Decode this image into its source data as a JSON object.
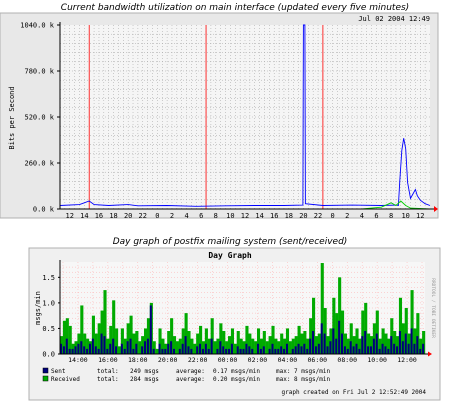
{
  "chart_data": [
    {
      "type": "line",
      "title": "Current bandwidth utilization on main interface (updated every five minutes)",
      "timestamp": "Jul 02 2004 12:49",
      "ylabel": "Bits per Second",
      "ylim": [
        0,
        1040000
      ],
      "yticks": [
        {
          "value": 0,
          "label": "0.0 k"
        },
        {
          "value": 260000,
          "label": "260.0 k"
        },
        {
          "value": 520000,
          "label": "520.0 k"
        },
        {
          "value": 780000,
          "label": "780.0 k"
        },
        {
          "value": 1040000,
          "label": "1040.0 k"
        }
      ],
      "xlabels": [
        "12",
        "14",
        "16",
        "18",
        "20",
        "22",
        "0",
        "2",
        "4",
        "6",
        "8",
        "10",
        "12",
        "14",
        "16",
        "18",
        "20",
        "22",
        "0",
        "2",
        "4",
        "6",
        "8",
        "10",
        "12"
      ],
      "day_boundaries_hours": [
        6,
        30,
        54
      ],
      "grid": true,
      "colors": {
        "background": "#f5f5f5",
        "grid": "#a0a0a0",
        "boundary": "#ff0000",
        "inbound": "#0000ff",
        "outbound": "#00cc00",
        "frame": "#000000"
      },
      "series": [
        {
          "color": "#0000ff",
          "points": [
            [
              0,
              20000
            ],
            [
              4,
              25000
            ],
            [
              5,
              35000
            ],
            [
              6,
              45000
            ],
            [
              7,
              25000
            ],
            [
              10,
              20000
            ],
            [
              14,
              25000
            ],
            [
              16,
              18000
            ],
            [
              22,
              20000
            ],
            [
              28,
              15000
            ],
            [
              34,
              18000
            ],
            [
              40,
              20000
            ],
            [
              46,
              20000
            ],
            [
              49.9,
              22000
            ],
            [
              50,
              1040000
            ],
            [
              50.3,
              1040000
            ],
            [
              50.4,
              30000
            ],
            [
              54,
              20000
            ],
            [
              60,
              22000
            ],
            [
              66,
              20000
            ],
            [
              69,
              22000
            ],
            [
              69.5,
              20000
            ],
            [
              69.8,
              160000
            ],
            [
              70.2,
              330000
            ],
            [
              70.6,
              400000
            ],
            [
              71,
              340000
            ],
            [
              71.4,
              150000
            ],
            [
              72,
              60000
            ],
            [
              73,
              110000
            ],
            [
              73.4,
              75000
            ],
            [
              74,
              50000
            ],
            [
              75,
              30000
            ],
            [
              76,
              20000
            ]
          ]
        },
        {
          "color": "#00cc00",
          "points": [
            [
              0,
              0
            ],
            [
              60,
              0
            ],
            [
              62,
              0
            ],
            [
              64,
              5000
            ],
            [
              66,
              10000
            ],
            [
              68,
              35000
            ],
            [
              69,
              20000
            ],
            [
              70,
              45000
            ],
            [
              71,
              20000
            ],
            [
              72,
              5000
            ],
            [
              76,
              0
            ]
          ]
        }
      ]
    },
    {
      "type": "bar",
      "title": "Day graph of postfix mailing system (sent/received)",
      "chart_title": "Day Graph",
      "ylabel": "msgs/min",
      "side_label": "RRDTOOL / TOBI OETIKER",
      "ylim": [
        0,
        1.8
      ],
      "yticks": [
        "0.0",
        "0.5",
        "1.0",
        "1.5"
      ],
      "xlabels": [
        "14:00",
        "16:00",
        "18:00",
        "20:00",
        "22:00",
        "00:00",
        "02:00",
        "04:00",
        "06:00",
        "08:00",
        "10:00",
        "12:00"
      ],
      "grid": true,
      "colors": {
        "background": "#f7f7f7",
        "grid": "#ff9a9a",
        "received": "#00aa00",
        "sent": "#00007a"
      },
      "received_values": [
        0.35,
        0.65,
        0.7,
        0.55,
        0.2,
        0.25,
        0.4,
        0.95,
        0.4,
        0.3,
        0.25,
        0.75,
        0.4,
        0.6,
        0.85,
        1.25,
        0.3,
        0.55,
        1.05,
        0.5,
        0.15,
        0.5,
        0.3,
        0.6,
        0.75,
        0.4,
        0.45,
        0.25,
        0.35,
        0.5,
        0.7,
        1.0,
        0.25,
        0.1,
        0.5,
        0.3,
        0.2,
        0.45,
        0.7,
        0.35,
        0.25,
        0.3,
        0.5,
        0.8,
        0.45,
        0.3,
        0.2,
        0.4,
        0.55,
        0.25,
        0.5,
        0.3,
        0.7,
        0.25,
        0.3,
        0.6,
        0.45,
        0.25,
        0.35,
        0.5,
        0.2,
        0.45,
        0.3,
        0.25,
        0.55,
        0.4,
        0.3,
        0.25,
        0.5,
        0.3,
        0.45,
        0.25,
        0.35,
        0.55,
        0.3,
        0.25,
        0.4,
        0.3,
        0.5,
        0.25,
        0.3,
        0.35,
        0.55,
        0.4,
        0.45,
        0.3,
        0.7,
        1.1,
        0.35,
        0.4,
        1.78,
        0.9,
        0.35,
        0.5,
        1.1,
        0.8,
        1.5,
        0.85,
        0.4,
        0.3,
        0.6,
        0.35,
        0.5,
        0.3,
        0.85,
        1.0,
        0.4,
        0.35,
        0.6,
        0.85,
        0.3,
        0.5,
        0.4,
        0.3,
        0.7,
        0.45,
        0.35,
        1.1,
        0.6,
        0.9,
        0.4,
        1.25,
        0.5,
        0.8,
        0.3,
        0.45
      ],
      "sent_values": [
        0.2,
        0.15,
        0.3,
        0.1,
        0.1,
        0.15,
        0.2,
        0.25,
        0.15,
        0.1,
        0.2,
        0.3,
        0.15,
        0.1,
        0.4,
        0.35,
        0.1,
        0.2,
        0.3,
        0.15,
        0.0,
        0.2,
        0.1,
        0.25,
        0.3,
        0.1,
        0.2,
        0.0,
        0.15,
        0.25,
        0.3,
        0.95,
        0.1,
        0.0,
        0.2,
        0.1,
        0.1,
        0.2,
        0.25,
        0.1,
        0.0,
        0.1,
        0.2,
        0.35,
        0.15,
        0.1,
        0.0,
        0.15,
        0.2,
        0.1,
        0.2,
        0.1,
        0.3,
        0.0,
        0.1,
        0.25,
        0.15,
        0.1,
        0.1,
        0.2,
        0.0,
        0.15,
        0.1,
        0.1,
        0.2,
        0.15,
        0.1,
        0.0,
        0.2,
        0.1,
        0.15,
        0.0,
        0.1,
        0.2,
        0.1,
        0.1,
        0.15,
        0.1,
        0.2,
        0.0,
        0.1,
        0.15,
        0.2,
        0.15,
        0.2,
        0.1,
        0.3,
        0.45,
        0.15,
        0.2,
        0.6,
        0.4,
        0.15,
        0.25,
        0.5,
        0.3,
        0.65,
        0.4,
        0.15,
        0.1,
        0.25,
        0.15,
        0.2,
        0.1,
        0.35,
        0.45,
        0.15,
        0.15,
        0.3,
        0.4,
        0.1,
        0.2,
        0.15,
        0.1,
        0.35,
        0.2,
        0.15,
        0.45,
        0.25,
        0.4,
        0.2,
        0.5,
        0.2,
        0.35,
        0.1,
        0.2
      ],
      "legend": [
        {
          "name": "Sent",
          "color": "#00007a",
          "total_label": "total:",
          "total": "249 msgs",
          "average_label": "average:",
          "average": "0.17 msgs/min",
          "max_label": "max:",
          "max": "7 msgs/min"
        },
        {
          "name": "Received",
          "color": "#00aa00",
          "total_label": "total:",
          "total": "284 msgs",
          "average_label": "average:",
          "average": "0.20 msgs/min",
          "max_label": "max:",
          "max": "8 msgs/min"
        }
      ],
      "footer": "graph created on Fri Jul  2 12:52:49 2004"
    }
  ]
}
